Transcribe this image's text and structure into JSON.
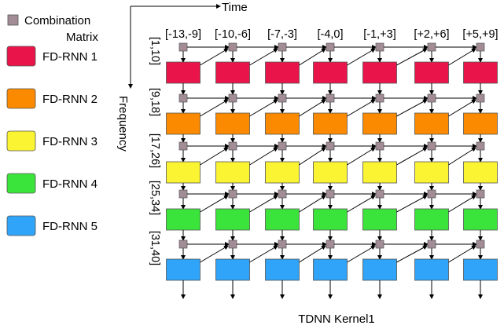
{
  "legend": {
    "matrix_label_line1": "Combination",
    "matrix_label_line2": "Matrix",
    "matrix_color": "#a28c96",
    "items": [
      {
        "label": "FD-RNN 1",
        "color": "#e8144a"
      },
      {
        "label": "FD-RNN 2",
        "color": "#fb8a00"
      },
      {
        "label": "FD-RNN 3",
        "color": "#fbf432"
      },
      {
        "label": "FD-RNN 4",
        "color": "#3ae43a"
      },
      {
        "label": "FD-RNN 5",
        "color": "#30a4f8"
      }
    ]
  },
  "axes": {
    "time_label": "Time",
    "frequency_label": "Frequency"
  },
  "time_windows": [
    "[-13,-9]",
    "[-10,-6]",
    "[-7,-3]",
    "[-4,0]",
    "[-1,+3]",
    "[+2,+6]",
    "[+5,+9]"
  ],
  "frequency_bands": [
    "[1,10]",
    "[9,18]",
    "[17,26]",
    "[25,34]",
    "[31,40]"
  ],
  "caption": "TDNN Kernel1"
}
